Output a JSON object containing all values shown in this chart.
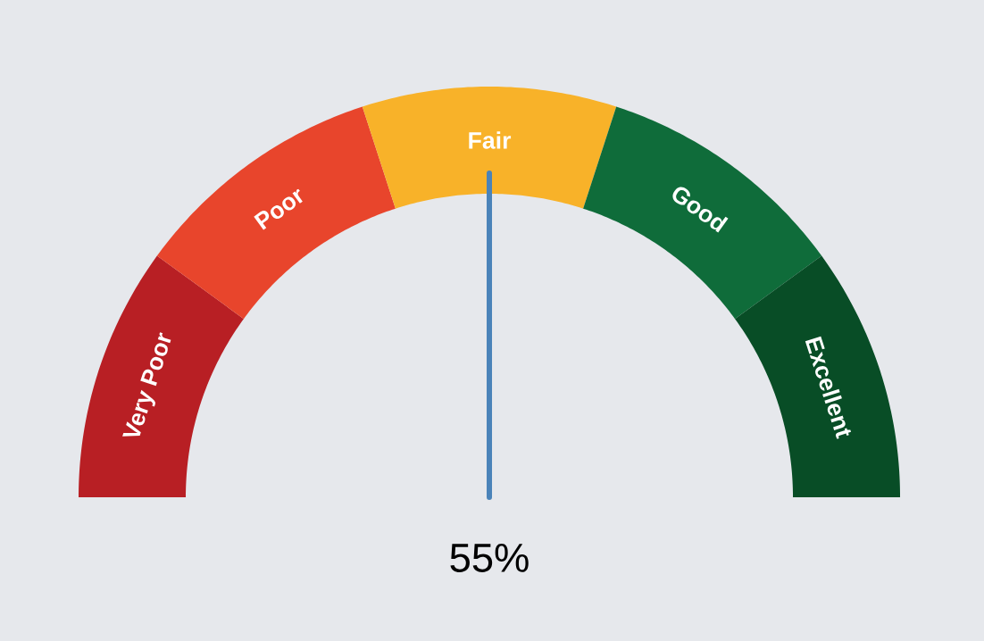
{
  "chart_data": {
    "type": "donut",
    "categories": [
      "Very Poor",
      "Poor",
      "Fair",
      "Good",
      "Excellent"
    ],
    "values": [
      20,
      20,
      20,
      20,
      20
    ],
    "colors": [
      "#b81f24",
      "#e8452c",
      "#f8b229",
      "#0f6c3a",
      "#084d26"
    ],
    "needle": "Fair",
    "annotations": [
      "55%"
    ]
  }
}
